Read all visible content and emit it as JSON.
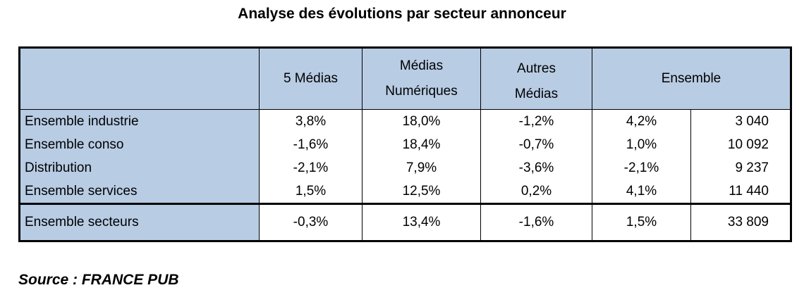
{
  "title": "Analyse des évolutions par secteur annonceur",
  "headers": {
    "col1": "5 Médias",
    "col2_line1": "Médias",
    "col2_line2": "Numériques",
    "col3_line1": "Autres",
    "col3_line2": "Médias",
    "col4": "Ensemble"
  },
  "rows": [
    {
      "label": "Ensemble industrie",
      "v1": "3,8%",
      "v2": "18,0%",
      "v3": "-1,2%",
      "v4": "4,2%",
      "v5": "3 040"
    },
    {
      "label": "Ensemble conso",
      "v1": "-1,6%",
      "v2": "18,4%",
      "v3": "-0,7%",
      "v4": "1,0%",
      "v5": "10 092"
    },
    {
      "label": "Distribution",
      "v1": "-2,1%",
      "v2": "7,9%",
      "v3": "-3,6%",
      "v4": "-2,1%",
      "v5": "9 237"
    },
    {
      "label": "Ensemble services",
      "v1": "1,5%",
      "v2": "12,5%",
      "v3": "0,2%",
      "v4": "4,1%",
      "v5": "11 440"
    }
  ],
  "total": {
    "label": "Ensemble secteurs",
    "v1": "-0,3%",
    "v2": "13,4%",
    "v3": "-1,6%",
    "v4": "1,5%",
    "v5": "33 809"
  },
  "source": "Source : FRANCE PUB"
}
